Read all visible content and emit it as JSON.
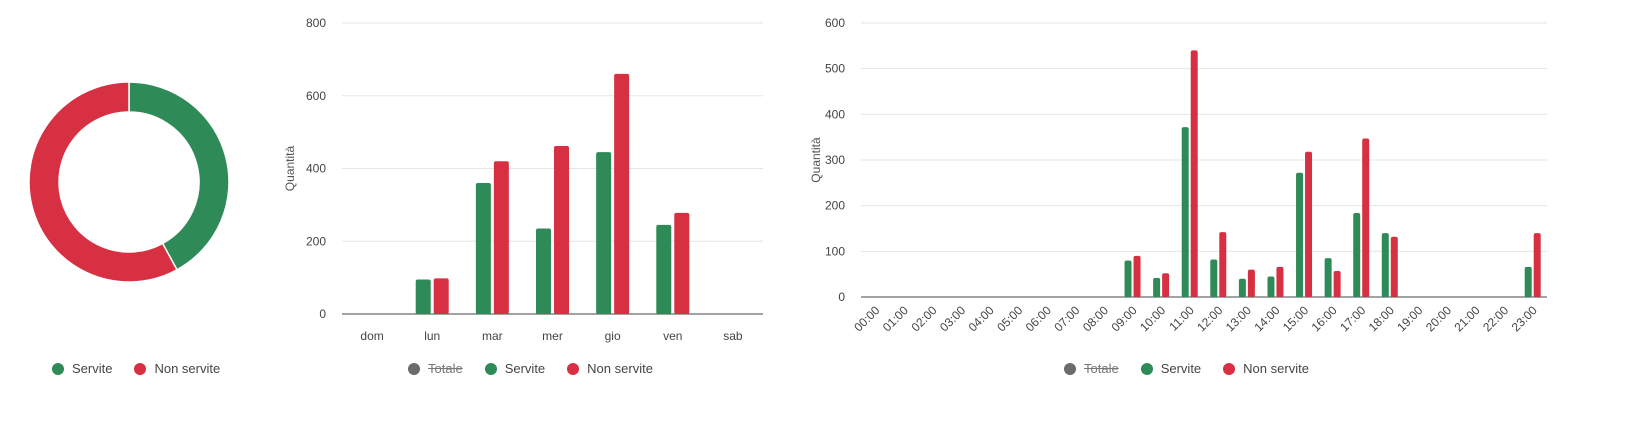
{
  "colors": {
    "servite": "#2e8b57",
    "non_servite": "#d63042",
    "totale": "#6b6b6b",
    "grid": "#e6e6e6",
    "axis": "#444444"
  },
  "chart_data": [
    {
      "type": "pie",
      "variant": "donut",
      "labels": [
        "Servite",
        "Non servite"
      ],
      "values": [
        1425,
        1965
      ],
      "legend": [
        {
          "label": "Servite",
          "color": "#2e8b57",
          "hidden": false
        },
        {
          "label": "Non servite",
          "color": "#d63042",
          "hidden": false
        }
      ],
      "legend_position": "bottom"
    },
    {
      "type": "bar",
      "categories": [
        "dom",
        "lun",
        "mar",
        "mer",
        "gio",
        "ven",
        "sab"
      ],
      "series": [
        {
          "name": "Servite",
          "color": "#2e8b57",
          "values": [
            0,
            95,
            360,
            235,
            445,
            245,
            0
          ]
        },
        {
          "name": "Non servite",
          "color": "#d63042",
          "values": [
            0,
            98,
            420,
            462,
            660,
            278,
            0
          ]
        }
      ],
      "ylabel": "Quantità",
      "ylim": [
        0,
        800
      ],
      "yticks": [
        "0",
        "200",
        "400",
        "600",
        "800"
      ],
      "grid": true,
      "legend": [
        {
          "label": "Totale",
          "color": "#6b6b6b",
          "hidden": true
        },
        {
          "label": "Servite",
          "color": "#2e8b57",
          "hidden": false
        },
        {
          "label": "Non servite",
          "color": "#d63042",
          "hidden": false
        }
      ],
      "legend_position": "bottom"
    },
    {
      "type": "bar",
      "categories": [
        "00:00",
        "01:00",
        "02:00",
        "03:00",
        "04:00",
        "05:00",
        "06:00",
        "07:00",
        "08:00",
        "09:00",
        "10:00",
        "11:00",
        "12:00",
        "13:00",
        "14:00",
        "15:00",
        "16:00",
        "17:00",
        "18:00",
        "19:00",
        "20:00",
        "21:00",
        "22:00",
        "23:00"
      ],
      "series": [
        {
          "name": "Servite",
          "color": "#2e8b57",
          "values": [
            0,
            0,
            0,
            0,
            0,
            0,
            0,
            0,
            0,
            80,
            42,
            372,
            82,
            40,
            45,
            272,
            85,
            184,
            140,
            0,
            0,
            0,
            0,
            66
          ]
        },
        {
          "name": "Non servite",
          "color": "#d63042",
          "values": [
            0,
            0,
            0,
            0,
            0,
            0,
            0,
            0,
            0,
            90,
            52,
            540,
            142,
            60,
            66,
            318,
            57,
            347,
            132,
            0,
            0,
            0,
            0,
            140
          ]
        }
      ],
      "ylabel": "Quantità",
      "ylim": [
        0,
        600
      ],
      "yticks": [
        "0",
        "100",
        "200",
        "300",
        "400",
        "500",
        "600"
      ],
      "grid": true,
      "legend": [
        {
          "label": "Totale",
          "color": "#6b6b6b",
          "hidden": true
        },
        {
          "label": "Servite",
          "color": "#2e8b57",
          "hidden": false
        },
        {
          "label": "Non servite",
          "color": "#d63042",
          "hidden": false
        }
      ],
      "legend_position": "bottom"
    }
  ]
}
